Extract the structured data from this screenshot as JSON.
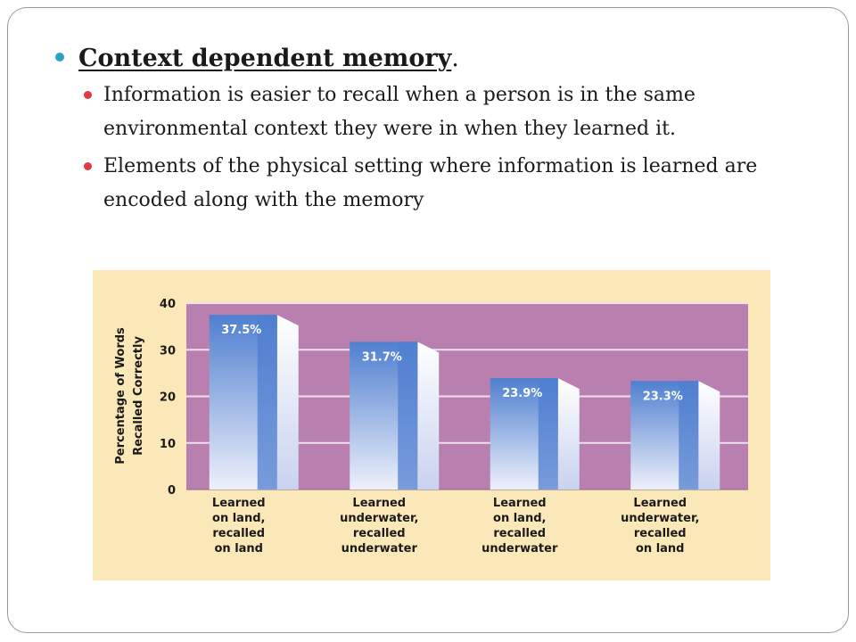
{
  "slide": {
    "heading": "Context dependent memory",
    "heading_suffix": ".",
    "bullets": [
      "Information is easier to recall when a person is in the same environmental context they were in when they learned it.",
      "Elements of the physical setting where information is learned are encoded along with the memory"
    ]
  },
  "colors": {
    "panel": "#fbe8b8",
    "plot": "#b97fae",
    "gridline": "#f0e0ee",
    "bar_dark": "#4f7fd0",
    "bar_light": "#eef0fb",
    "bar_side": "#c9d2ef",
    "bullet_level1": "#2ca3bd",
    "bullet_level2": "#e03a40"
  },
  "chart_data": {
    "type": "bar",
    "categories": [
      [
        "Learned",
        "on land,",
        "recalled",
        "on land"
      ],
      [
        "Learned",
        "underwater,",
        "recalled",
        "underwater"
      ],
      [
        "Learned",
        "on land,",
        "recalled",
        "underwater"
      ],
      [
        "Learned",
        "underwater,",
        "recalled",
        "on land"
      ]
    ],
    "values": [
      37.5,
      31.7,
      23.9,
      23.3
    ],
    "data_labels": [
      "37.5%",
      "31.7%",
      "23.9%",
      "23.3%"
    ],
    "ylabel_lines": [
      "Percentage of Words",
      "Recalled Correctly"
    ],
    "ylim": [
      0,
      40
    ],
    "yticks": [
      0,
      10,
      20,
      30,
      40
    ],
    "grid": true,
    "legend": "none"
  }
}
